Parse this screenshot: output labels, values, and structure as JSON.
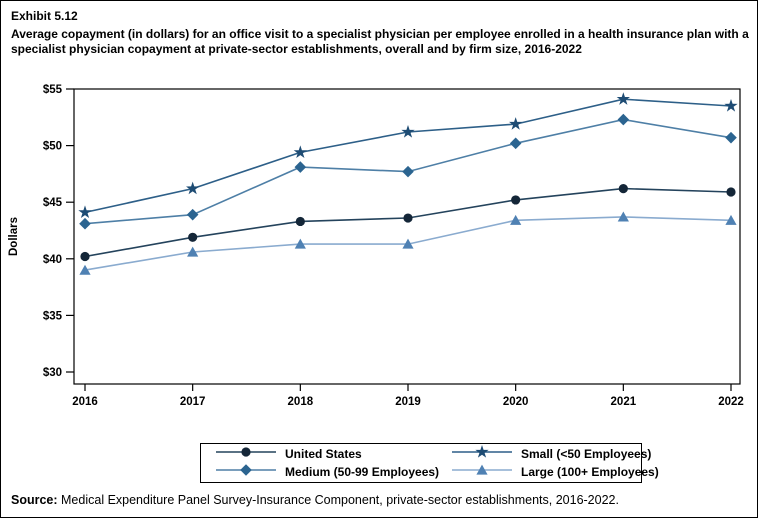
{
  "figure": {
    "exhibit_label": "Exhibit 5.12",
    "title": "Average copayment (in dollars) for an office visit to a specialist physician per employee enrolled in a health insurance plan with a specialist physician copayment at private-sector establishments, overall and by firm size, 2016-2022",
    "source_label": "Source:",
    "source_text": " Medical Expenditure Panel Survey-Insurance Component, private-sector establishments, 2016-2022."
  },
  "chart_data": {
    "type": "line",
    "title": "Average copayment (in dollars) for an office visit to a specialist physician per employee enrolled in a health insurance plan with a specialist physician copayment at private-sector establishments, overall and by firm size, 2016-2022",
    "xlabel": "",
    "ylabel": "Dollars",
    "categories": [
      "2016",
      "2017",
      "2018",
      "2019",
      "2020",
      "2021",
      "2022"
    ],
    "ylim": [
      30,
      55
    ],
    "yticks": [
      30,
      35,
      40,
      45,
      50,
      55
    ],
    "ytick_labels": [
      "$30",
      "$35",
      "$40",
      "$45",
      "$50",
      "$55"
    ],
    "grid": false,
    "legend_position": "bottom",
    "series": [
      {
        "name": "United States",
        "marker": "circle",
        "marker_color": "#142638",
        "line_color": "#24435C",
        "values": [
          40.2,
          41.9,
          43.3,
          43.6,
          45.2,
          46.2,
          45.9
        ]
      },
      {
        "name": "Small (<50 Employees)",
        "marker": "star",
        "marker_color": "#1E4C74",
        "line_color": "#2D5F88",
        "values": [
          44.1,
          46.2,
          49.4,
          51.2,
          51.9,
          54.1,
          53.5
        ]
      },
      {
        "name": "Medium (50-99 Employees)",
        "marker": "diamond",
        "marker_color": "#2B6490",
        "line_color": "#4E7FA6",
        "values": [
          43.1,
          43.9,
          48.1,
          47.7,
          50.2,
          52.3,
          50.7
        ]
      },
      {
        "name": "Large (100+ Employees)",
        "marker": "triangle",
        "marker_color": "#4F81B3",
        "line_color": "#8AABCF",
        "values": [
          39.0,
          40.6,
          41.3,
          41.3,
          43.4,
          43.7,
          43.4
        ]
      }
    ]
  }
}
